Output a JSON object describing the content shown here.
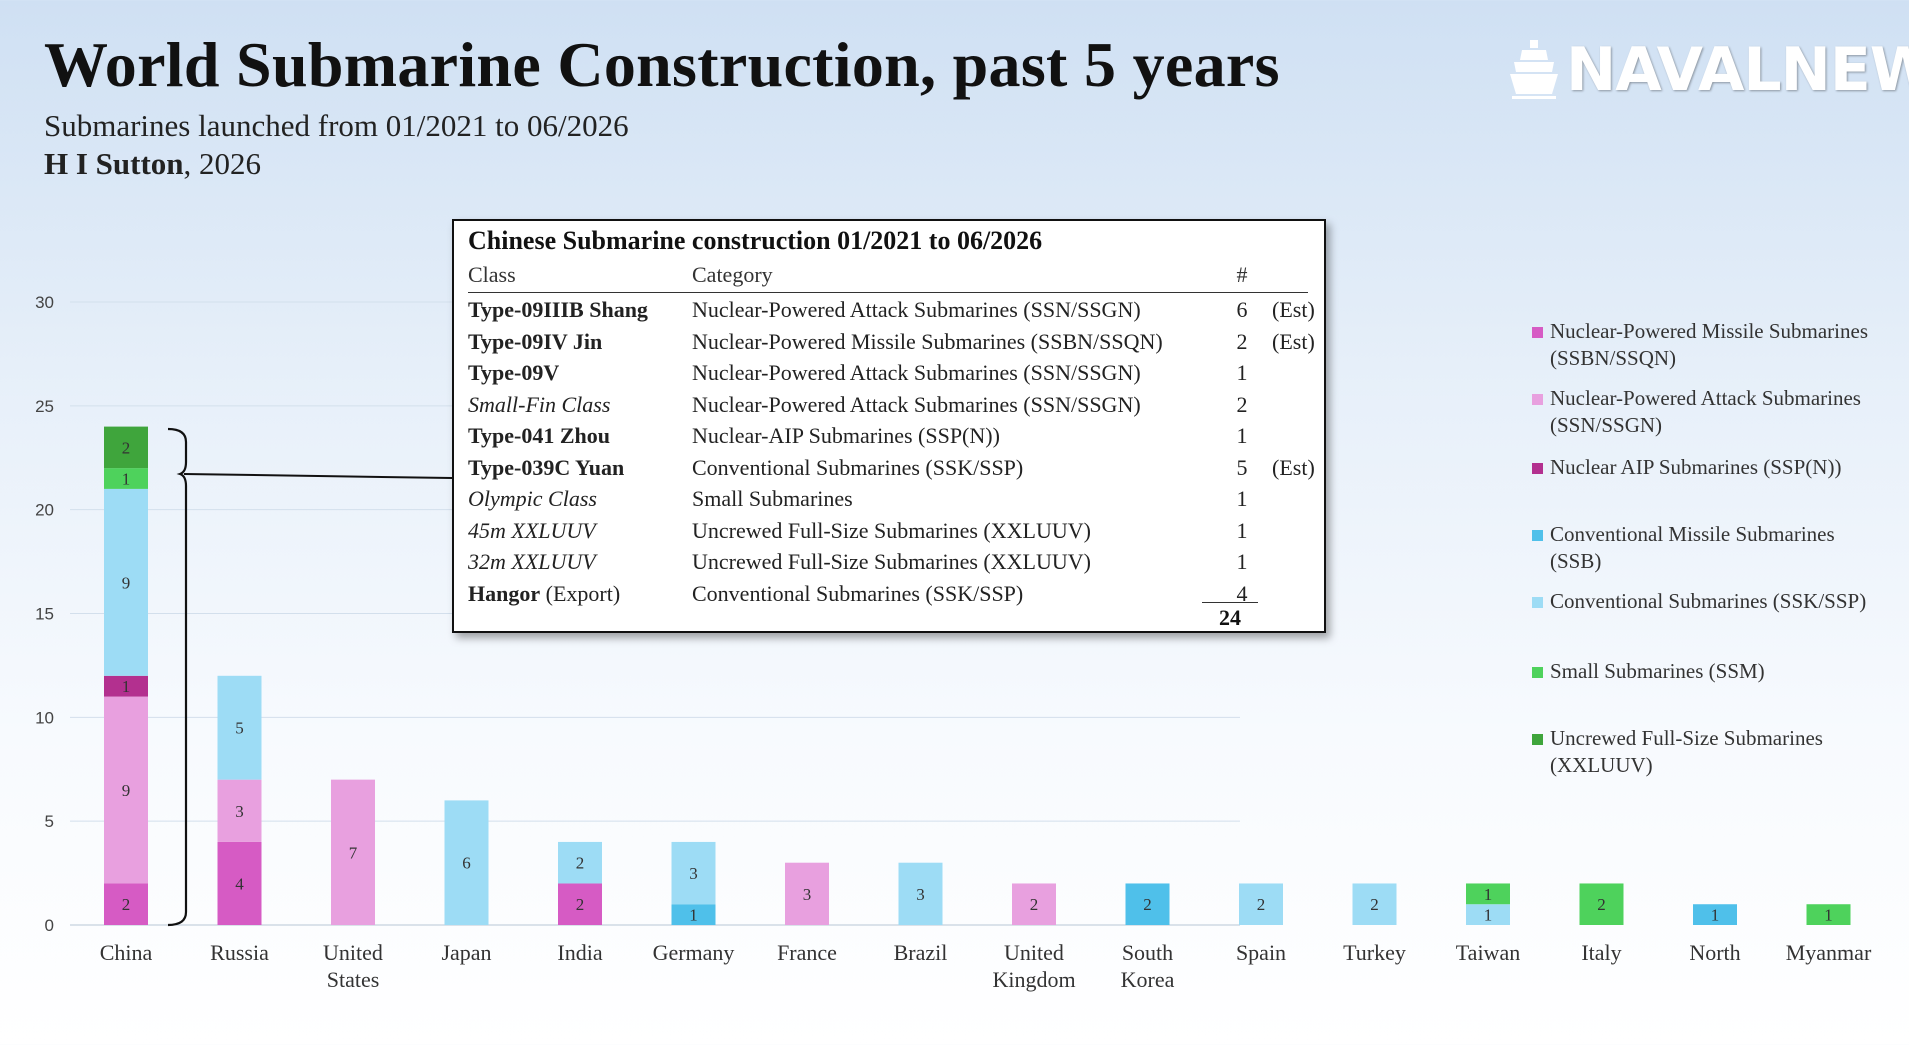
{
  "header": {
    "title": "World Submarine Construction, past 5 years",
    "subtitle": "Submarines launched from 01/2021 to 06/2026",
    "author_name": "H I Sutton",
    "author_suffix": ", 2026",
    "logo_text": "NAVALNEWS"
  },
  "colors": {
    "SSBN": "#d65bc4",
    "SSN": "#e8a0df",
    "SSPN": "#b3308f",
    "SSB": "#4fc0ea",
    "SSK": "#9ddcf5",
    "SSM": "#4ed25c",
    "XLUUV": "#3fa53c"
  },
  "legend": [
    {
      "key": "SSBN",
      "label": "Nuclear-Powered Missile Submarines (SSBN/SSQN)"
    },
    {
      "key": "SSN",
      "label": "Nuclear-Powered Attack Submarines (SSN/SSGN)"
    },
    {
      "key": "SSPN",
      "label": "Nuclear AIP Submarines (SSP(N))"
    },
    {
      "key": "SSB",
      "label": "Conventional Missile Submarines (SSB)"
    },
    {
      "key": "SSK",
      "label": "Conventional Submarines (SSK/SSP)"
    },
    {
      "key": "SSM",
      "label": "Small Submarines (SSM)"
    },
    {
      "key": "XLUUV",
      "label": "Uncrewed Full-Size Submarines (XXLUUV)"
    }
  ],
  "chart_data": {
    "type": "bar",
    "stacked": true,
    "ylim": [
      0,
      30
    ],
    "yticks": [
      0,
      5,
      10,
      15,
      20,
      25,
      30
    ],
    "grid": true,
    "legend_position": "right",
    "categories": [
      "China",
      "Russia",
      "United States",
      "Japan",
      "India",
      "Germany",
      "France",
      "Brazil",
      "United Kingdom",
      "South Korea",
      "Spain",
      "Turkey",
      "Taiwan",
      "Italy",
      "North",
      "Myanmar"
    ],
    "series": [
      {
        "key": "SSBN",
        "name": "Nuclear-Powered Missile Submarines (SSBN/SSQN)",
        "values": [
          2,
          4,
          0,
          0,
          2,
          0,
          0,
          0,
          0,
          0,
          0,
          0,
          0,
          0,
          0,
          0
        ]
      },
      {
        "key": "SSN",
        "name": "Nuclear-Powered Attack Submarines (SSN/SSGN)",
        "values": [
          9,
          3,
          7,
          0,
          0,
          0,
          3,
          0,
          2,
          0,
          0,
          0,
          0,
          0,
          0,
          0
        ]
      },
      {
        "key": "SSPN",
        "name": "Nuclear AIP Submarines (SSP(N))",
        "values": [
          1,
          0,
          0,
          0,
          0,
          0,
          0,
          0,
          0,
          0,
          0,
          0,
          0,
          0,
          0,
          0
        ]
      },
      {
        "key": "SSB",
        "name": "Conventional Missile Submarines (SSB)",
        "values": [
          0,
          0,
          0,
          0,
          0,
          1,
          0,
          0,
          0,
          2,
          0,
          0,
          0,
          0,
          1,
          0
        ]
      },
      {
        "key": "SSK",
        "name": "Conventional Submarines (SSK/SSP)",
        "values": [
          9,
          5,
          0,
          6,
          2,
          3,
          0,
          3,
          0,
          0,
          2,
          2,
          1,
          0,
          0,
          0
        ]
      },
      {
        "key": "SSM",
        "name": "Small Submarines (SSM)",
        "values": [
          1,
          0,
          0,
          0,
          0,
          0,
          0,
          0,
          0,
          0,
          0,
          0,
          1,
          2,
          0,
          1
        ]
      },
      {
        "key": "XLUUV",
        "name": "Uncrewed Full-Size Submarines (XXLUUV)",
        "values": [
          2,
          0,
          0,
          0,
          0,
          0,
          0,
          0,
          0,
          0,
          0,
          0,
          0,
          0,
          0,
          0
        ]
      }
    ]
  },
  "inset_table": {
    "title": "Chinese Submarine construction 01/2021 to 06/2026",
    "headers": {
      "class": "Class",
      "category": "Category",
      "count": "#"
    },
    "rows": [
      {
        "class": "Type-09IIIB Shang",
        "class_extra": "",
        "style": "bold",
        "category": "Nuclear-Powered Attack Submarines (SSN/SSGN)",
        "count": "6",
        "note": "(Est)"
      },
      {
        "class": "Type-09IV Jin",
        "class_extra": "",
        "style": "bold",
        "category": "Nuclear-Powered Missile Submarines (SSBN/SSQN)",
        "count": "2",
        "note": "(Est)"
      },
      {
        "class": "Type-09V",
        "class_extra": "",
        "style": "bold",
        "category": "Nuclear-Powered Attack Submarines (SSN/SSGN)",
        "count": "1",
        "note": ""
      },
      {
        "class": "Small-Fin Class",
        "class_extra": "",
        "style": "italic",
        "category": "Nuclear-Powered Attack Submarines (SSN/SSGN)",
        "count": "2",
        "note": ""
      },
      {
        "class": "Type-041 Zhou",
        "class_extra": "",
        "style": "bold",
        "category": "Nuclear-AIP Submarines (SSP(N))",
        "count": "1",
        "note": ""
      },
      {
        "class": "Type-039C Yuan",
        "class_extra": "",
        "style": "bold",
        "category": "Conventional Submarines (SSK/SSP)",
        "count": "5",
        "note": "(Est)"
      },
      {
        "class": "Olympic Class",
        "class_extra": "",
        "style": "italic",
        "category": "Small Submarines",
        "count": "1",
        "note": ""
      },
      {
        "class": "45m XXLUUV",
        "class_extra": "",
        "style": "italic",
        "category": "Uncrewed Full-Size Submarines (XXLUUV)",
        "count": "1",
        "note": ""
      },
      {
        "class": "32m XXLUUV",
        "class_extra": "",
        "style": "italic",
        "category": "Uncrewed Full-Size Submarines (XXLUUV)",
        "count": "1",
        "note": ""
      },
      {
        "class": "Hangor",
        "class_extra": " (Export)",
        "style": "bold",
        "category": "Conventional Submarines (SSK/SSP)",
        "count": "4",
        "note": ""
      }
    ],
    "total": "24"
  }
}
